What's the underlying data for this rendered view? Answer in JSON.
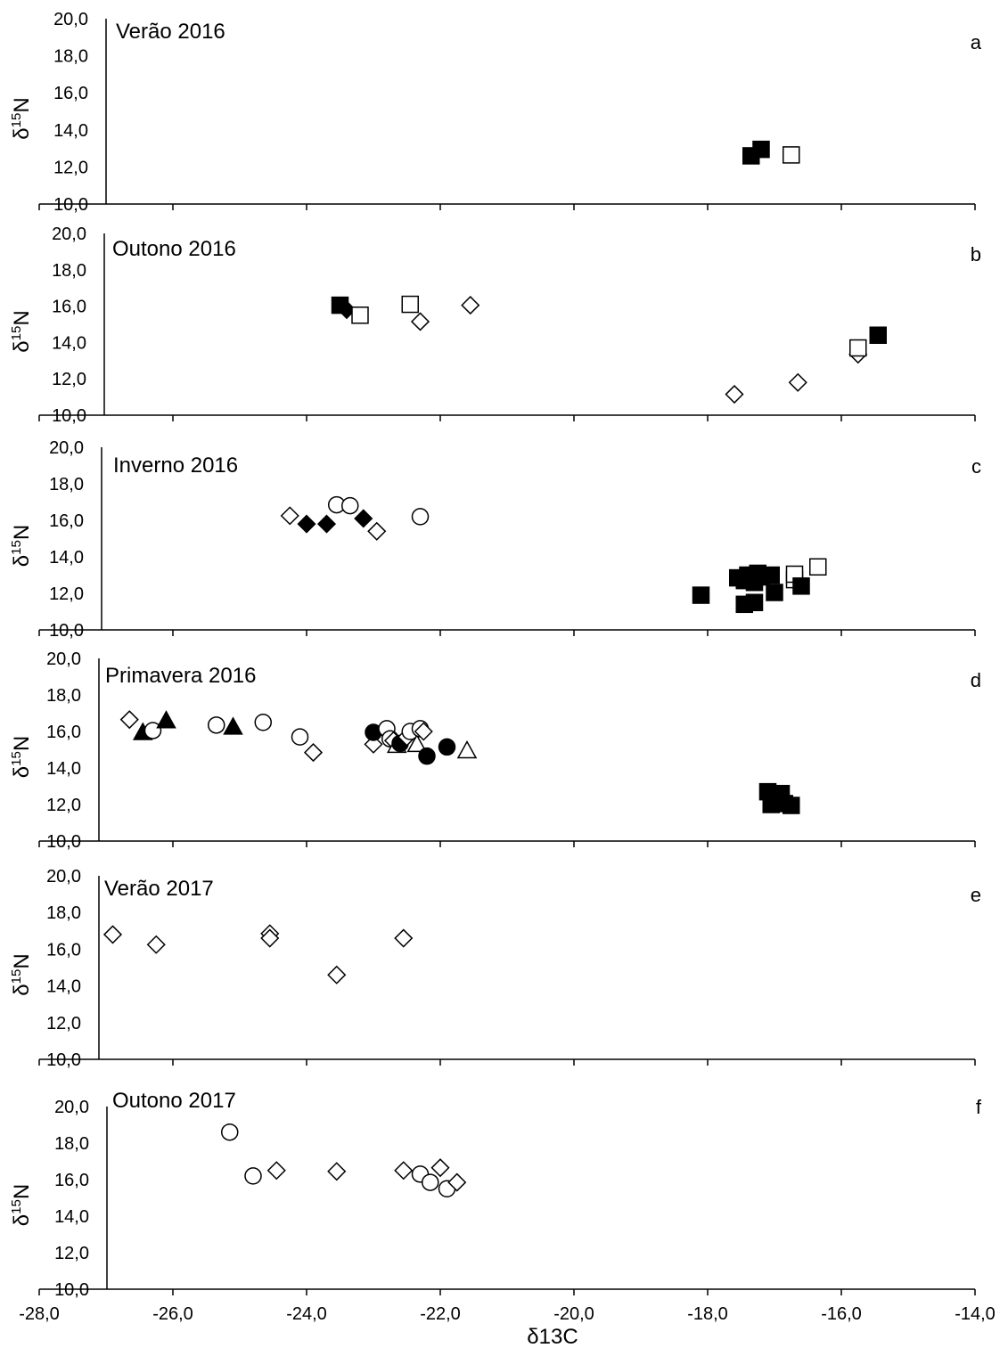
{
  "chart_data": {
    "type": "scatter",
    "xlabel": "δ13C",
    "ylabel_base": "δ",
    "ylabel_sup": "15",
    "ylabel_end": "N",
    "xlim": [
      -28,
      -14
    ],
    "ylim": [
      10,
      20
    ],
    "x_ticks": [
      "-28,0",
      "-26,0",
      "-24,0",
      "-22,0",
      "-20,0",
      "-18,0",
      "-16,0",
      "-14,0"
    ],
    "y_ticks": [
      "10,0",
      "12,0",
      "14,0",
      "16,0",
      "18,0",
      "20,0"
    ],
    "grid": false,
    "panels": [
      {
        "letter": "a",
        "title": "Verão 2016",
        "points": [
          {
            "x": -17.35,
            "y": 12.6,
            "marker": "square",
            "fill": "filled"
          },
          {
            "x": -17.2,
            "y": 12.95,
            "marker": "square",
            "fill": "filled"
          },
          {
            "x": -16.75,
            "y": 12.65,
            "marker": "square",
            "fill": "open"
          }
        ]
      },
      {
        "letter": "b",
        "title": "Outono 2016",
        "points": [
          {
            "x": -23.5,
            "y": 16.05,
            "marker": "square",
            "fill": "filled"
          },
          {
            "x": -23.4,
            "y": 15.8,
            "marker": "diamond",
            "fill": "filled"
          },
          {
            "x": -23.2,
            "y": 15.5,
            "marker": "square",
            "fill": "open"
          },
          {
            "x": -22.45,
            "y": 16.1,
            "marker": "square",
            "fill": "open"
          },
          {
            "x": -22.3,
            "y": 15.15,
            "marker": "diamond",
            "fill": "open"
          },
          {
            "x": -21.55,
            "y": 16.05,
            "marker": "diamond",
            "fill": "open"
          },
          {
            "x": -17.6,
            "y": 11.15,
            "marker": "diamond",
            "fill": "open"
          },
          {
            "x": -16.65,
            "y": 11.8,
            "marker": "diamond",
            "fill": "open"
          },
          {
            "x": -15.75,
            "y": 13.35,
            "marker": "diamond",
            "fill": "open"
          },
          {
            "x": -15.75,
            "y": 13.7,
            "marker": "square",
            "fill": "open"
          },
          {
            "x": -15.45,
            "y": 14.4,
            "marker": "square",
            "fill": "filled"
          }
        ]
      },
      {
        "letter": "c",
        "title": "Inverno 2016",
        "points": [
          {
            "x": -24.25,
            "y": 16.25,
            "marker": "diamond",
            "fill": "open"
          },
          {
            "x": -24.0,
            "y": 15.8,
            "marker": "diamond",
            "fill": "filled"
          },
          {
            "x": -23.7,
            "y": 15.8,
            "marker": "diamond",
            "fill": "filled"
          },
          {
            "x": -23.55,
            "y": 16.85,
            "marker": "circle",
            "fill": "open"
          },
          {
            "x": -23.35,
            "y": 16.8,
            "marker": "circle",
            "fill": "open"
          },
          {
            "x": -23.15,
            "y": 16.1,
            "marker": "diamond",
            "fill": "filled"
          },
          {
            "x": -22.95,
            "y": 15.4,
            "marker": "diamond",
            "fill": "open"
          },
          {
            "x": -22.3,
            "y": 16.2,
            "marker": "circle",
            "fill": "open"
          },
          {
            "x": -18.1,
            "y": 11.9,
            "marker": "square",
            "fill": "filled"
          },
          {
            "x": -17.55,
            "y": 12.85,
            "marker": "square",
            "fill": "filled"
          },
          {
            "x": -17.45,
            "y": 12.7,
            "marker": "square",
            "fill": "filled"
          },
          {
            "x": -17.4,
            "y": 13.0,
            "marker": "square",
            "fill": "filled"
          },
          {
            "x": -17.3,
            "y": 12.6,
            "marker": "square",
            "fill": "filled"
          },
          {
            "x": -17.25,
            "y": 13.1,
            "marker": "square",
            "fill": "filled"
          },
          {
            "x": -17.2,
            "y": 12.9,
            "marker": "square",
            "fill": "filled"
          },
          {
            "x": -17.05,
            "y": 13.0,
            "marker": "square",
            "fill": "filled"
          },
          {
            "x": -17.45,
            "y": 11.4,
            "marker": "square",
            "fill": "filled"
          },
          {
            "x": -17.3,
            "y": 11.5,
            "marker": "square",
            "fill": "filled"
          },
          {
            "x": -17.0,
            "y": 12.05,
            "marker": "square",
            "fill": "filled"
          },
          {
            "x": -16.7,
            "y": 12.75,
            "marker": "square",
            "fill": "open"
          },
          {
            "x": -16.7,
            "y": 13.05,
            "marker": "square",
            "fill": "open"
          },
          {
            "x": -16.6,
            "y": 12.4,
            "marker": "square",
            "fill": "filled"
          },
          {
            "x": -16.35,
            "y": 13.45,
            "marker": "square",
            "fill": "open"
          }
        ]
      },
      {
        "letter": "d",
        "title": "Primavera 2016",
        "points": [
          {
            "x": -26.65,
            "y": 16.65,
            "marker": "diamond",
            "fill": "open"
          },
          {
            "x": -26.45,
            "y": 15.95,
            "marker": "triangle",
            "fill": "filled"
          },
          {
            "x": -26.3,
            "y": 16.05,
            "marker": "circle",
            "fill": "open"
          },
          {
            "x": -26.1,
            "y": 16.6,
            "marker": "triangle",
            "fill": "filled"
          },
          {
            "x": -25.35,
            "y": 16.35,
            "marker": "circle",
            "fill": "open"
          },
          {
            "x": -25.1,
            "y": 16.25,
            "marker": "triangle",
            "fill": "filled"
          },
          {
            "x": -24.65,
            "y": 16.5,
            "marker": "circle",
            "fill": "open"
          },
          {
            "x": -24.1,
            "y": 15.7,
            "marker": "circle",
            "fill": "open"
          },
          {
            "x": -23.9,
            "y": 14.85,
            "marker": "diamond",
            "fill": "open"
          },
          {
            "x": -23.0,
            "y": 15.3,
            "marker": "diamond",
            "fill": "open"
          },
          {
            "x": -23.0,
            "y": 15.95,
            "marker": "circle",
            "fill": "filled"
          },
          {
            "x": -22.8,
            "y": 16.15,
            "marker": "circle",
            "fill": "open"
          },
          {
            "x": -22.75,
            "y": 15.6,
            "marker": "circle",
            "fill": "open"
          },
          {
            "x": -22.7,
            "y": 15.5,
            "marker": "diamond",
            "fill": "open"
          },
          {
            "x": -22.65,
            "y": 15.25,
            "marker": "triangle",
            "fill": "open"
          },
          {
            "x": -22.6,
            "y": 15.35,
            "marker": "circle",
            "fill": "filled"
          },
          {
            "x": -22.5,
            "y": 15.7,
            "marker": "diamond",
            "fill": "open"
          },
          {
            "x": -22.45,
            "y": 16.0,
            "marker": "circle",
            "fill": "open"
          },
          {
            "x": -22.35,
            "y": 15.3,
            "marker": "triangle",
            "fill": "open"
          },
          {
            "x": -22.3,
            "y": 16.15,
            "marker": "circle",
            "fill": "open"
          },
          {
            "x": -22.25,
            "y": 16.0,
            "marker": "diamond",
            "fill": "open"
          },
          {
            "x": -22.2,
            "y": 14.65,
            "marker": "circle",
            "fill": "filled"
          },
          {
            "x": -21.9,
            "y": 15.15,
            "marker": "circle",
            "fill": "filled"
          },
          {
            "x": -21.6,
            "y": 14.95,
            "marker": "triangle",
            "fill": "open"
          },
          {
            "x": -17.1,
            "y": 12.7,
            "marker": "square",
            "fill": "filled"
          },
          {
            "x": -16.9,
            "y": 12.6,
            "marker": "square",
            "fill": "filled"
          },
          {
            "x": -17.05,
            "y": 12.0,
            "marker": "square",
            "fill": "filled"
          },
          {
            "x": -16.85,
            "y": 12.05,
            "marker": "square",
            "fill": "filled"
          },
          {
            "x": -16.75,
            "y": 11.95,
            "marker": "square",
            "fill": "filled"
          }
        ]
      },
      {
        "letter": "e",
        "title": "Verão 2017",
        "points": [
          {
            "x": -26.9,
            "y": 16.8,
            "marker": "diamond",
            "fill": "open"
          },
          {
            "x": -26.25,
            "y": 16.25,
            "marker": "diamond",
            "fill": "open"
          },
          {
            "x": -24.55,
            "y": 16.85,
            "marker": "diamond",
            "fill": "open"
          },
          {
            "x": -24.55,
            "y": 16.6,
            "marker": "diamond",
            "fill": "open"
          },
          {
            "x": -23.55,
            "y": 14.6,
            "marker": "diamond",
            "fill": "open"
          },
          {
            "x": -22.55,
            "y": 16.6,
            "marker": "diamond",
            "fill": "open"
          }
        ]
      },
      {
        "letter": "f",
        "title": "Outono 2017",
        "points": [
          {
            "x": -25.15,
            "y": 18.6,
            "marker": "circle",
            "fill": "open"
          },
          {
            "x": -24.8,
            "y": 16.2,
            "marker": "circle",
            "fill": "open"
          },
          {
            "x": -24.45,
            "y": 16.5,
            "marker": "diamond",
            "fill": "open"
          },
          {
            "x": -23.55,
            "y": 16.45,
            "marker": "diamond",
            "fill": "open"
          },
          {
            "x": -22.55,
            "y": 16.5,
            "marker": "diamond",
            "fill": "open"
          },
          {
            "x": -22.3,
            "y": 16.3,
            "marker": "circle",
            "fill": "open"
          },
          {
            "x": -22.15,
            "y": 15.85,
            "marker": "circle",
            "fill": "open"
          },
          {
            "x": -22.0,
            "y": 16.65,
            "marker": "diamond",
            "fill": "open"
          },
          {
            "x": -21.9,
            "y": 15.5,
            "marker": "circle",
            "fill": "open"
          },
          {
            "x": -21.75,
            "y": 15.85,
            "marker": "diamond",
            "fill": "open"
          }
        ]
      }
    ]
  }
}
